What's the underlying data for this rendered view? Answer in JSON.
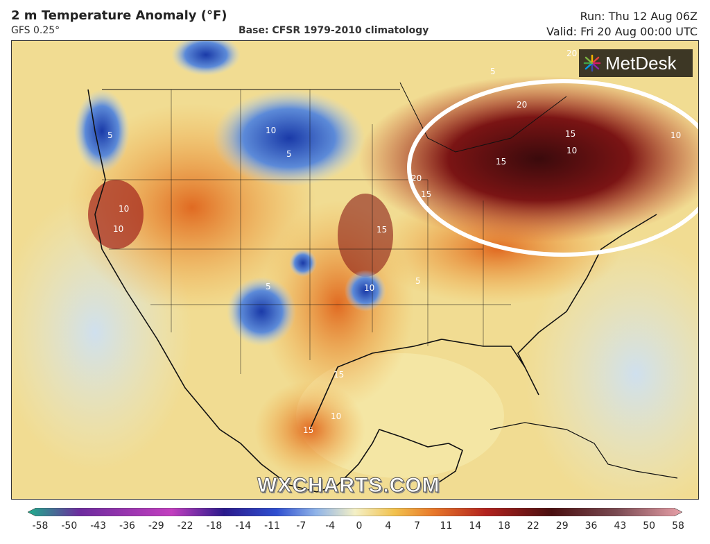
{
  "header": {
    "title": "2 m Temperature Anomaly (°F)",
    "model": "GFS 0.25°",
    "base": "Base: CFSR 1979-2010 climatology",
    "run": "Run: Thu 12 Aug 06Z",
    "valid": "Valid: Fri 20 Aug 00:00 UTC"
  },
  "logo": {
    "text": "MetDesk",
    "icon": "metdesk-burst-icon"
  },
  "watermark": "WXCHARTS.COM",
  "map": {
    "contour_labels": [
      "20",
      "5",
      "20",
      "15",
      "10",
      "15",
      "15",
      "20",
      "15",
      "15",
      "5",
      "10",
      "10",
      "15",
      "10",
      "5",
      "5",
      "10",
      "10",
      "10",
      "5"
    ]
  },
  "legend": {
    "ticks": [
      "-58",
      "-50",
      "-43",
      "-36",
      "-29",
      "-22",
      "-18",
      "-14",
      "-11",
      "-7",
      "-4",
      "0",
      "4",
      "7",
      "11",
      "14",
      "18",
      "22",
      "29",
      "36",
      "43",
      "50",
      "58"
    ],
    "colors": [
      "#1fae8c",
      "#6d2b9e",
      "#c23fbf",
      "#2a1a8c",
      "#2f4fd0",
      "#8fb3e8",
      "#f4f0c6",
      "#f2c24e",
      "#e8782a",
      "#b2221e",
      "#4a0f10",
      "#7a4a52",
      "#e8a0a8"
    ]
  }
}
